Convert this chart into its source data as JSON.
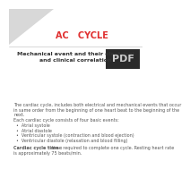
{
  "title": "AC   CYCLE",
  "title_color": "#e03030",
  "subtitle_line1": "Mechanical event and their electrical",
  "subtitle_line2": "and clinical correlation",
  "subtitle_color": "#333333",
  "body_para": "The cardiac cycle, includes both electrical and mechanical events that occur\nin same order from the beginning of one heart beat to the beginning of the\nnext.\nEach cardiac cycle consists of four basic events:",
  "bullets": [
    "Atrial systole",
    "Atrial diastole",
    "Ventricular systole (contraction and blood ejection)",
    "Ventricular diastole (relaxation and blood filling)"
  ],
  "footer_bold": "Cardiac cycle time :",
  "footer_rest": " time required to complete one cycle. Resting heart rate\nis approximately 75 beats/min.",
  "bg_color": "#ffffff",
  "triangle_color": "#d8d8d8",
  "pdf_box_color": "#2a2a2a",
  "pdf_text_color": "#cccccc",
  "body_color": "#555555",
  "title_fontsize": 7.0,
  "subtitle_fontsize": 4.5,
  "body_fontsize": 3.5,
  "footer_fontsize": 3.5
}
